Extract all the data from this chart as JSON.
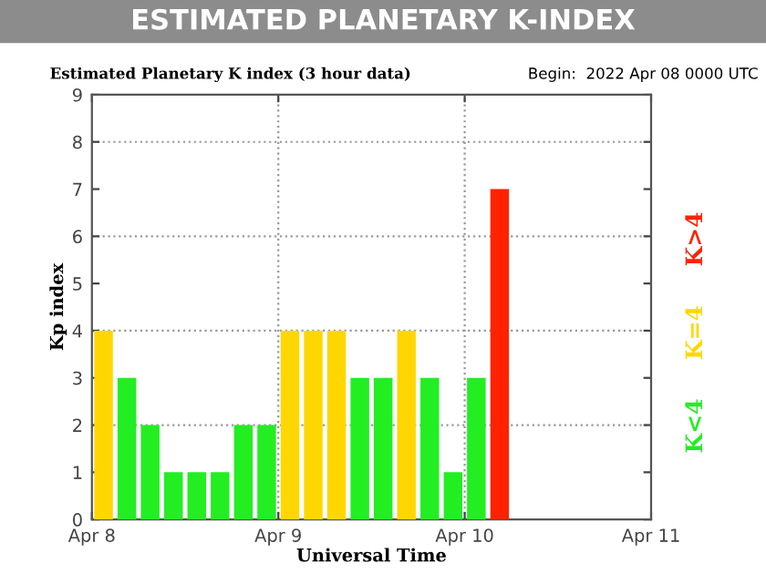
{
  "chart_data": {
    "type": "bar",
    "title": "ESTIMATED PLANETARY K-INDEX",
    "subtitle": "Estimated Planetary K index (3 hour data)",
    "annotations": [
      "Begin:  2022 Apr 08 0000 UTC"
    ],
    "xlabel": "Universal Time",
    "ylabel": "Kp index",
    "series": [
      {
        "name": "K<4",
        "color": "#22ee22",
        "x": [
          "2022-04-08T03:00",
          "2022-04-08T06:00",
          "2022-04-08T09:00",
          "2022-04-08T12:00",
          "2022-04-08T15:00",
          "2022-04-08T18:00",
          "2022-04-08T21:00",
          "2022-04-09T09:00",
          "2022-04-09T12:00",
          "2022-04-09T18:00",
          "2022-04-09T21:00",
          "2022-04-10T00:00"
        ],
        "values": [
          3,
          2,
          1,
          1,
          1,
          2,
          2,
          3,
          3,
          3,
          1,
          3
        ]
      },
      {
        "name": "K=4",
        "color": "#ffd700",
        "x": [
          "2022-04-08T00:00",
          "2022-04-09T00:00",
          "2022-04-09T03:00",
          "2022-04-09T06:00",
          "2022-04-09T15:00"
        ],
        "values": [
          4,
          4,
          4,
          4,
          4
        ]
      },
      {
        "name": "K>4",
        "color": "#ff2200",
        "x": [
          "2022-04-10T03:00"
        ],
        "values": [
          7
        ]
      }
    ],
    "legend": "right",
    "xlim": [
      "2022-04-08",
      "2022-04-11"
    ],
    "xticks": [
      {
        "value": "2022-04-08",
        "label": "Apr 8"
      },
      {
        "value": "2022-04-09",
        "label": "Apr 9"
      },
      {
        "value": "2022-04-10",
        "label": "Apr 10"
      },
      {
        "value": "2022-04-11",
        "label": "Apr 11"
      }
    ],
    "ylim": [
      0,
      9
    ],
    "yticks": [
      0,
      1,
      2,
      3,
      4,
      5,
      6,
      7,
      8,
      9
    ],
    "ref_lines": [
      {
        "axis": "y",
        "value": 2,
        "label": null,
        "color": "#999999",
        "line_style": "dotted"
      },
      {
        "axis": "y",
        "value": 4,
        "label": null,
        "color": "#999999",
        "line_style": "dotted"
      },
      {
        "axis": "y",
        "value": 6,
        "label": null,
        "color": "#999999",
        "line_style": "dotted"
      },
      {
        "axis": "y",
        "value": 8,
        "label": null,
        "color": "#999999",
        "line_style": "dotted"
      },
      {
        "axis": "x",
        "value": "2022-04-09",
        "label": null,
        "color": "#999999",
        "line_style": "dotted"
      },
      {
        "axis": "x",
        "value": "2022-04-10",
        "label": null,
        "color": "#999999",
        "line_style": "dotted"
      }
    ]
  }
}
